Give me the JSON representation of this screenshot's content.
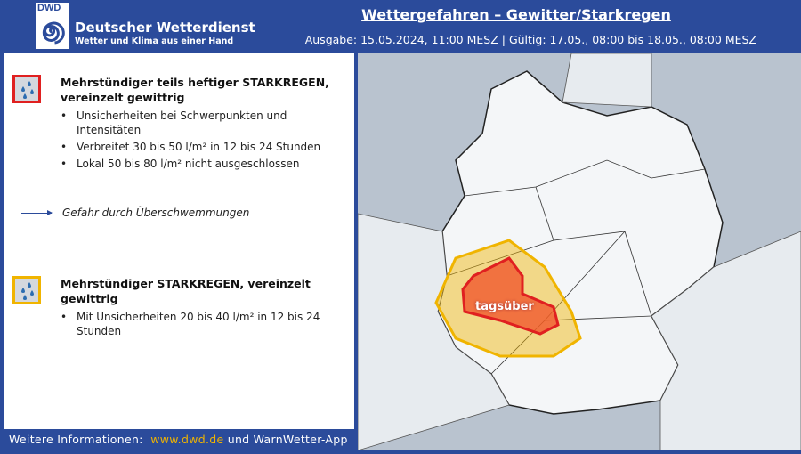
{
  "header": {
    "logo_text": "DWD",
    "org_name": "Deutscher Wetterdienst",
    "org_slogan": "Wetter und Klima aus einer Hand",
    "title": "Wettergefahren – Gewitter/Starkregen",
    "issue": "Ausgabe: 15.05.2024, 11:00 MESZ | Gültig: 17.05., 08:00 bis 18.05., 08:00 MESZ"
  },
  "colors": {
    "brand": "#2b4b9b",
    "severe": "#e02020",
    "moderate": "#f0b400",
    "link": "#f0b400"
  },
  "warnings": [
    {
      "level": "severe",
      "icon": "rain-drops-icon",
      "title": "Mehrstündiger teils heftiger STARKREGEN, vereinzelt gewittrig",
      "bullets": [
        "Unsicherheiten bei Schwerpunkten und Intensitäten",
        "Verbreitet 30 bis 50 l/m² in 12 bis 24 Stunden",
        "Lokal 50 bis 80 l/m² nicht ausgeschlossen"
      ]
    },
    {
      "level": "moderate",
      "icon": "rain-drops-icon",
      "title": "Mehrstündiger STARKREGEN, vereinzelt gewittrig",
      "bullets": [
        "Mit Unsicherheiten 20 bis 40 l/m² in 12 bis 24 Stunden"
      ]
    }
  ],
  "flood_note": "Gefahr durch Überschwemmungen",
  "map": {
    "label": "tagsüber"
  },
  "footer": {
    "prefix": "Weitere Informationen:",
    "url": "www.dwd.de",
    "suffix": "und WarnWetter-App"
  }
}
